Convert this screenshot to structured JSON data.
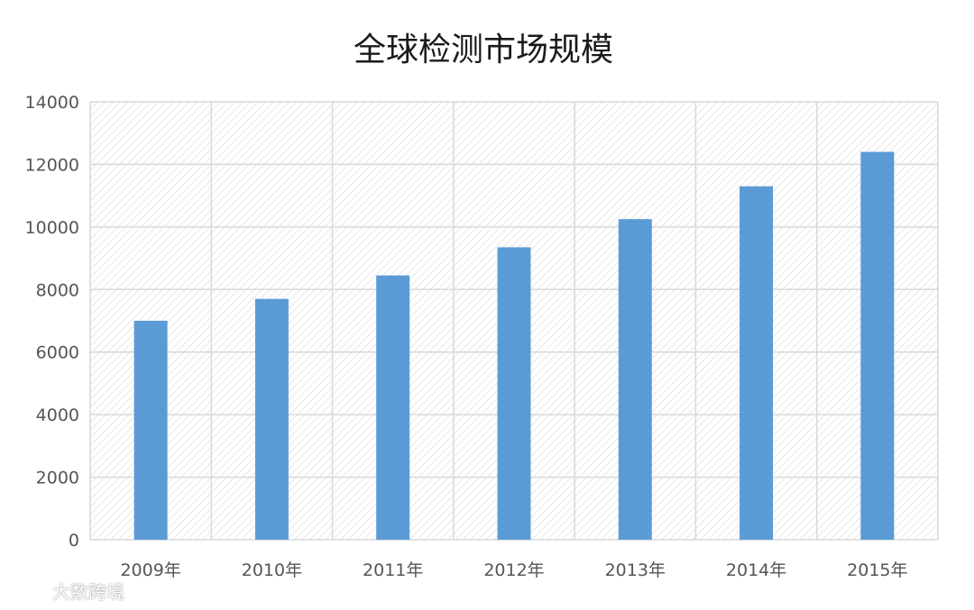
{
  "colors": {
    "bar": "#5b9bd5",
    "gridline": "#d9d9d9",
    "plot_hatch": "#e6e6e6",
    "text": "#555555"
  },
  "chart_data": {
    "type": "bar",
    "title": "全球检测市场规模",
    "xlabel": "",
    "ylabel": "",
    "categories": [
      "2009年",
      "2010年",
      "2011年",
      "2012年",
      "2013年",
      "2014年",
      "2015年"
    ],
    "series": [
      {
        "values": [
          7000,
          7700,
          8450,
          9350,
          10250,
          11300,
          12400
        ]
      }
    ],
    "ylim": [
      0,
      14000
    ],
    "yticks": [
      0,
      2000,
      4000,
      6000,
      8000,
      10000,
      12000,
      14000
    ],
    "grid": true,
    "legend": "none"
  },
  "watermark": {
    "text": "大数跨境",
    "logo_icon": "chat-bubble-logo-icon"
  }
}
